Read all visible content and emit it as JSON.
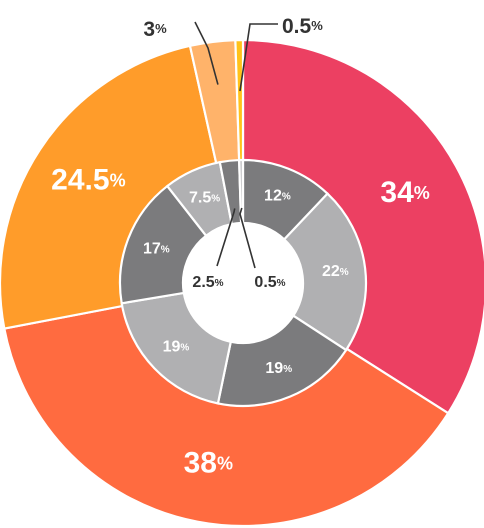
{
  "chart_data": {
    "type": "pie",
    "outer_ring": {
      "slices": [
        {
          "label": "34",
          "value": 34,
          "color": "#EC4062",
          "label_color": "#ffffff",
          "unit": "%"
        },
        {
          "label": "38",
          "value": 38,
          "color": "#FF6B40",
          "label_color": "#ffffff",
          "unit": "%"
        },
        {
          "label": "24.5",
          "value": 24.5,
          "color": "#FF9C2A",
          "label_color": "#ffffff",
          "unit": "%"
        },
        {
          "label": "3",
          "value": 3,
          "color": "#FFB36A",
          "label_color": "#333333",
          "unit": "%"
        },
        {
          "label": "0.5",
          "value": 0.5,
          "color": "#FFC21A",
          "label_color": "#333333",
          "unit": "%"
        }
      ]
    },
    "inner_ring": {
      "slices": [
        {
          "label": "12",
          "value": 12,
          "color": "#7B7B7D",
          "label_color": "#ffffff",
          "unit": "%"
        },
        {
          "label": "22",
          "value": 22,
          "color": "#B0B0B2",
          "label_color": "#ffffff",
          "unit": "%"
        },
        {
          "label": "19",
          "value": 19,
          "color": "#7B7B7D",
          "label_color": "#ffffff",
          "unit": "%"
        },
        {
          "label": "19",
          "value": 19,
          "color": "#B0B0B2",
          "label_color": "#ffffff",
          "unit": "%"
        },
        {
          "label": "17",
          "value": 17,
          "color": "#7B7B7D",
          "label_color": "#ffffff",
          "unit": "%"
        },
        {
          "label": "7.5",
          "value": 7.5,
          "color": "#B0B0B2",
          "label_color": "#ffffff",
          "unit": "%"
        },
        {
          "label": "2.5",
          "value": 2.5,
          "color": "#7B7B7D",
          "label_color": "#333333",
          "unit": "%"
        },
        {
          "label": "0.5",
          "value": 0.5,
          "color": "#C9C9CB",
          "label_color": "#333333",
          "unit": "%"
        }
      ]
    }
  }
}
